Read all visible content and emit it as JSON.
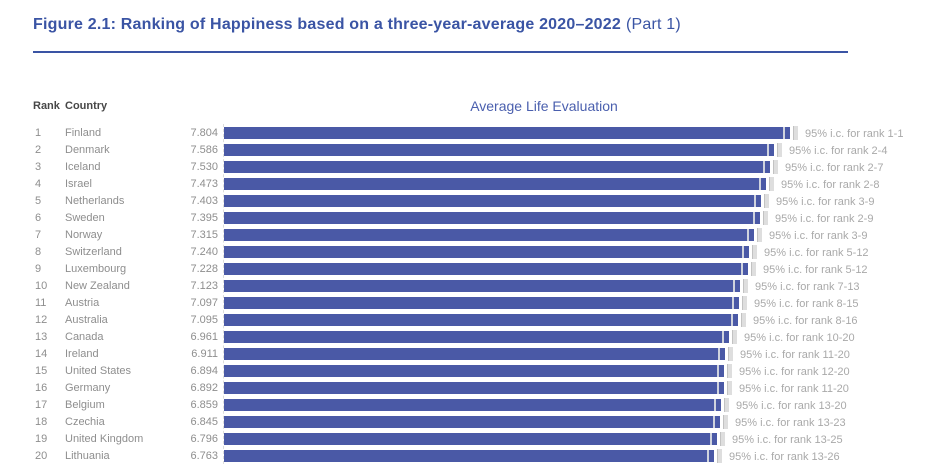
{
  "title": {
    "main": "Figure 2.1: Ranking of Happiness based on a three-year-average 2020–2022",
    "part": "(Part 1)"
  },
  "columns": {
    "rank": "Rank",
    "country": "Country"
  },
  "chart_header": "Average Life Evaluation",
  "colors": {
    "bar_blue": "#4a59a6",
    "title_blue": "#3a54a4",
    "header_text_gray": "#474747",
    "row_text_gray": "#8e8e8e",
    "ci_label_gray": "#a9a9a9"
  },
  "chart_data": {
    "type": "bar",
    "orientation": "horizontal",
    "title": "Average Life Evaluation",
    "xlabel": "",
    "ylabel": "",
    "value_range": [
      0,
      8
    ],
    "grid": false,
    "error_bars": "95% confidence interval brackets at bar ends",
    "rows": [
      {
        "rank": 1,
        "country": "Finland",
        "value": 7.804,
        "ci_label": "95% i.c. for rank 1-1"
      },
      {
        "rank": 2,
        "country": "Denmark",
        "value": 7.586,
        "ci_label": "95% i.c. for rank 2-4"
      },
      {
        "rank": 3,
        "country": "Iceland",
        "value": 7.53,
        "ci_label": "95% i.c. for rank 2-7"
      },
      {
        "rank": 4,
        "country": "Israel",
        "value": 7.473,
        "ci_label": "95% i.c. for rank 2-8"
      },
      {
        "rank": 5,
        "country": "Netherlands",
        "value": 7.403,
        "ci_label": "95% i.c. for rank 3-9"
      },
      {
        "rank": 6,
        "country": "Sweden",
        "value": 7.395,
        "ci_label": "95% i.c. for rank 2-9"
      },
      {
        "rank": 7,
        "country": "Norway",
        "value": 7.315,
        "ci_label": "95% i.c. for rank 3-9"
      },
      {
        "rank": 8,
        "country": "Switzerland",
        "value": 7.24,
        "ci_label": "95% i.c. for rank 5-12"
      },
      {
        "rank": 9,
        "country": "Luxembourg",
        "value": 7.228,
        "ci_label": "95% i.c. for rank 5-12"
      },
      {
        "rank": 10,
        "country": "New Zealand",
        "value": 7.123,
        "ci_label": "95% i.c. for rank 7-13"
      },
      {
        "rank": 11,
        "country": "Austria",
        "value": 7.097,
        "ci_label": "95% i.c. for rank 8-15"
      },
      {
        "rank": 12,
        "country": "Australia",
        "value": 7.095,
        "ci_label": "95% i.c. for rank 8-16"
      },
      {
        "rank": 13,
        "country": "Canada",
        "value": 6.961,
        "ci_label": "95% i.c. for rank 10-20"
      },
      {
        "rank": 14,
        "country": "Ireland",
        "value": 6.911,
        "ci_label": "95% i.c. for rank 11-20"
      },
      {
        "rank": 15,
        "country": "United States",
        "value": 6.894,
        "ci_label": "95% i.c. for rank 12-20"
      },
      {
        "rank": 16,
        "country": "Germany",
        "value": 6.892,
        "ci_label": "95% i.c. for rank 11-20"
      },
      {
        "rank": 17,
        "country": "Belgium",
        "value": 6.859,
        "ci_label": "95% i.c. for rank 13-20"
      },
      {
        "rank": 18,
        "country": "Czechia",
        "value": 6.845,
        "ci_label": "95% i.c. for rank 13-23"
      },
      {
        "rank": 19,
        "country": "United Kingdom",
        "value": 6.796,
        "ci_label": "95% i.c. for rank 13-25"
      },
      {
        "rank": 20,
        "country": "Lithuania",
        "value": 6.763,
        "ci_label": "95% i.c. for rank 13-26"
      }
    ]
  }
}
